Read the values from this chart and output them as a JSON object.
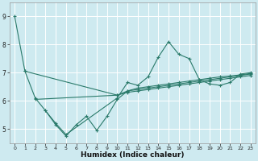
{
  "title": "",
  "xlabel": "Humidex (Indice chaleur)",
  "ylabel": "",
  "background_color": "#ceeaf0",
  "grid_color": "#ffffff",
  "line_color": "#2a7a6a",
  "xlim": [
    -0.5,
    23.5
  ],
  "ylim": [
    4.5,
    9.5
  ],
  "yticks": [
    5,
    6,
    7,
    8,
    9
  ],
  "xticks": [
    0,
    1,
    2,
    3,
    4,
    5,
    6,
    7,
    8,
    9,
    10,
    11,
    12,
    13,
    14,
    15,
    16,
    17,
    18,
    19,
    20,
    21,
    22,
    23
  ],
  "series": [
    {
      "x": [
        0,
        1,
        2,
        3,
        4,
        5,
        10,
        11,
        12,
        13,
        14,
        15,
        16,
        17,
        18,
        19,
        20,
        21,
        22,
        23
      ],
      "y": [
        9.0,
        7.05,
        6.1,
        5.65,
        5.2,
        4.8,
        6.1,
        6.65,
        6.55,
        6.85,
        7.55,
        8.1,
        7.65,
        7.5,
        6.75,
        6.6,
        6.55,
        6.65,
        6.95,
        7.0
      ]
    },
    {
      "x": [
        1,
        10,
        11,
        12,
        13,
        14,
        15,
        16,
        17,
        18,
        19,
        20,
        21,
        22,
        23
      ],
      "y": [
        7.05,
        6.2,
        6.35,
        6.45,
        6.5,
        6.55,
        6.6,
        6.65,
        6.7,
        6.75,
        6.8,
        6.85,
        6.88,
        6.92,
        6.97
      ]
    },
    {
      "x": [
        2,
        10,
        11,
        12,
        13,
        14,
        15,
        16,
        17,
        18,
        19,
        20,
        21,
        22,
        23
      ],
      "y": [
        6.05,
        6.2,
        6.3,
        6.35,
        6.4,
        6.45,
        6.5,
        6.55,
        6.6,
        6.65,
        6.7,
        6.75,
        6.8,
        6.85,
        6.9
      ]
    },
    {
      "x": [
        3,
        4,
        5,
        6,
        7,
        8,
        9,
        10,
        11,
        12,
        13,
        14,
        15,
        16,
        17,
        18,
        19,
        20,
        21,
        22,
        23
      ],
      "y": [
        5.65,
        5.15,
        4.75,
        5.15,
        5.45,
        4.95,
        5.45,
        6.05,
        6.35,
        6.4,
        6.45,
        6.5,
        6.55,
        6.6,
        6.65,
        6.7,
        6.75,
        6.8,
        6.85,
        6.9,
        6.95
      ]
    }
  ]
}
